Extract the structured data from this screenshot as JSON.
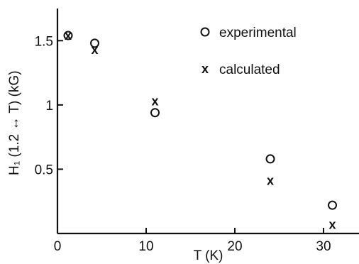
{
  "chart_data": {
    "type": "scatter",
    "title": "",
    "xlabel": "T (K)",
    "ylabel": "H₁ (1.2 ↔ T) (kG)",
    "xlim": [
      0,
      34
    ],
    "ylim": [
      0,
      1.75
    ],
    "x_ticks": [
      0,
      10,
      20,
      30
    ],
    "x_tick_labels": [
      "0",
      "10",
      "20",
      "30"
    ],
    "y_ticks": [
      0.5,
      1,
      1.5
    ],
    "y_tick_labels": [
      "0.5",
      "1",
      "1.5"
    ],
    "grid": false,
    "legend_position": "top-right",
    "series": [
      {
        "name": "experimental",
        "marker": "o",
        "points": [
          {
            "x": 1.2,
            "y": 1.54
          },
          {
            "x": 4.2,
            "y": 1.48
          },
          {
            "x": 11,
            "y": 0.94
          },
          {
            "x": 24,
            "y": 0.58
          },
          {
            "x": 31,
            "y": 0.22
          }
        ]
      },
      {
        "name": "calculated",
        "marker": "x",
        "points": [
          {
            "x": 1.2,
            "y": 1.54
          },
          {
            "x": 4.2,
            "y": 1.43
          },
          {
            "x": 11,
            "y": 1.03
          },
          {
            "x": 24,
            "y": 0.41
          },
          {
            "x": 31,
            "y": 0.07
          }
        ]
      }
    ]
  }
}
